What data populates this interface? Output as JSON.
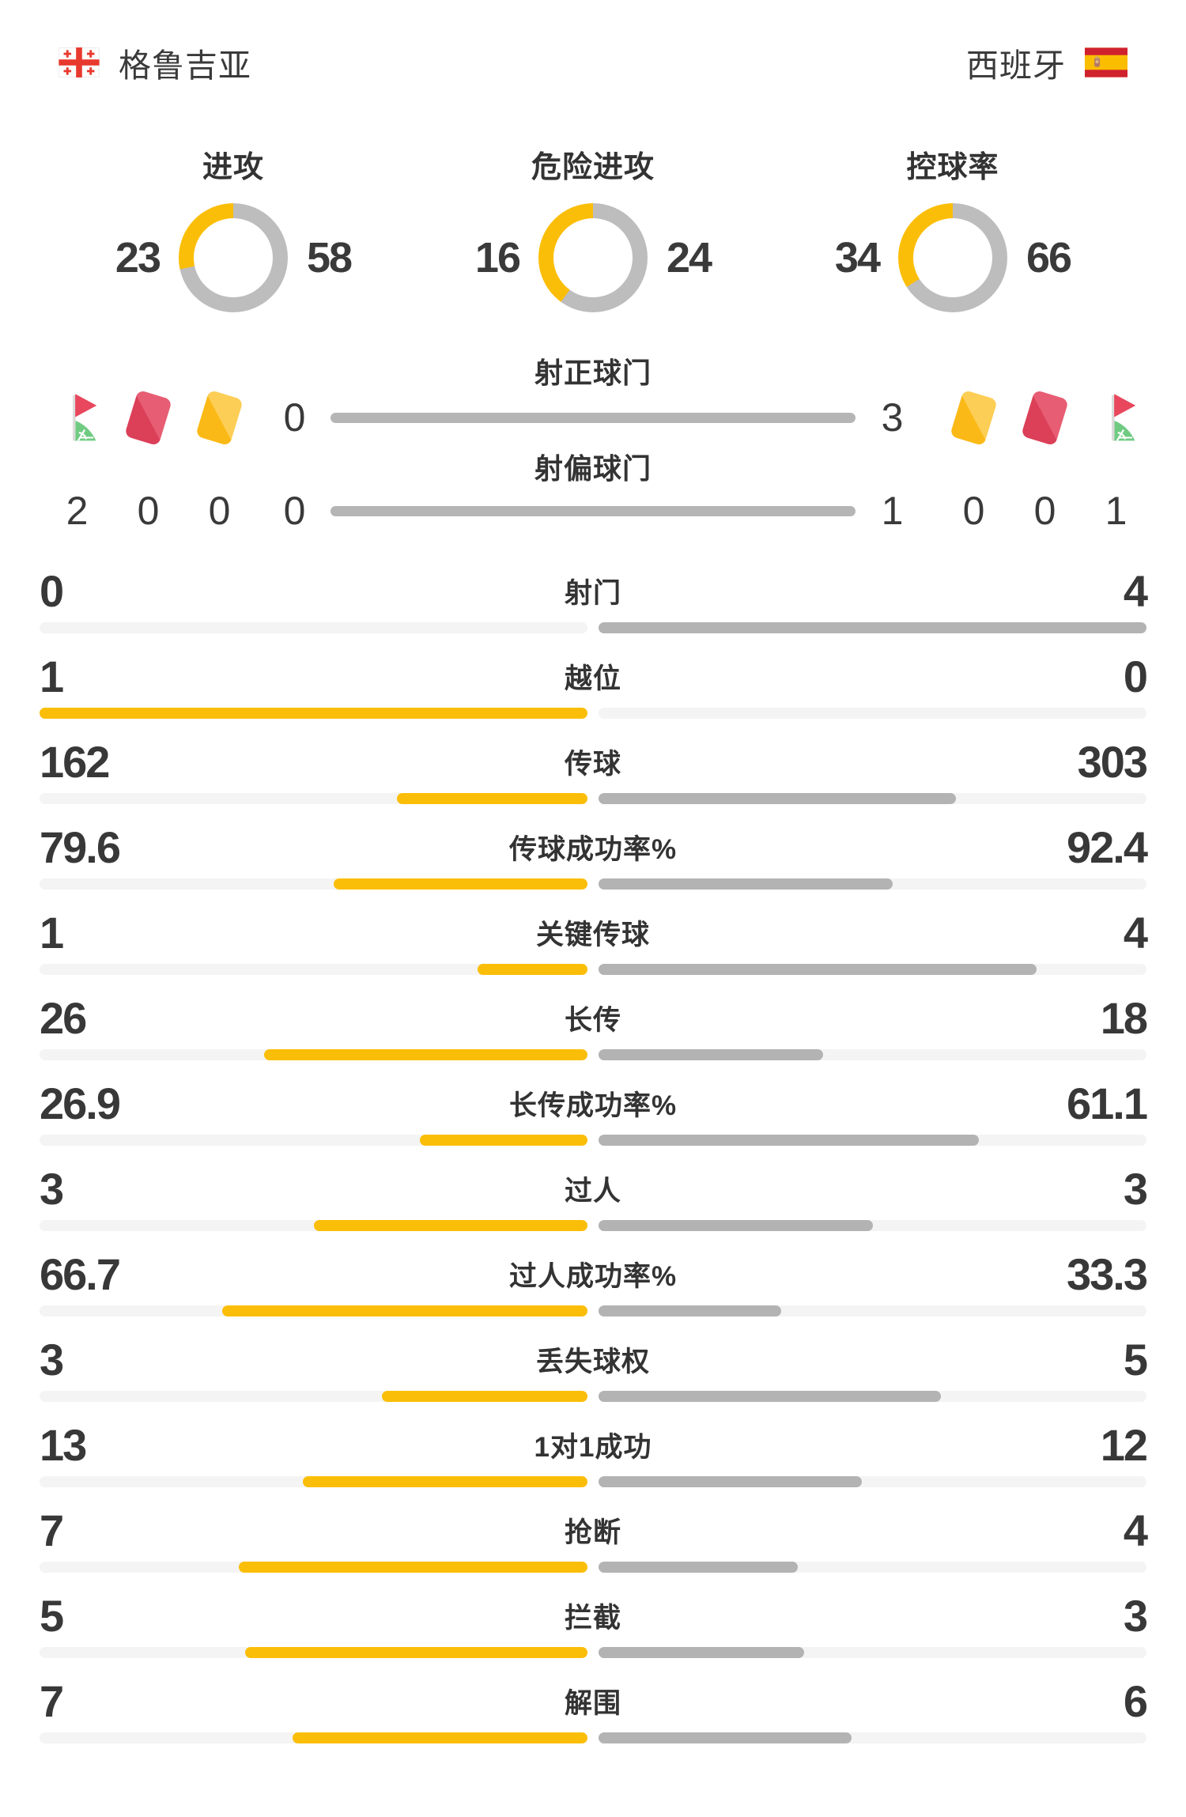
{
  "header": {
    "home": {
      "name": "格鲁吉亚",
      "flag": "georgia-flag"
    },
    "away": {
      "name": "西班牙",
      "flag": "spain-flag"
    }
  },
  "donuts": [
    {
      "title": "进攻",
      "home": 23,
      "away": 58
    },
    {
      "title": "危险进攻",
      "home": 16,
      "away": 24
    },
    {
      "title": "控球率",
      "home": 34,
      "away": 66
    }
  ],
  "shots": {
    "rows": [
      {
        "label": "射正球门",
        "home": "0",
        "away": "3"
      },
      {
        "label": "射偏球门",
        "home": "0",
        "away": "1"
      }
    ],
    "home_icons": [
      {
        "icon": "corner-flag-icon",
        "value": "2"
      },
      {
        "icon": "red-card-icon",
        "value": "0"
      },
      {
        "icon": "yellow-card-icon",
        "value": "0"
      }
    ],
    "away_icons": [
      {
        "icon": "yellow-card-icon",
        "value": "0"
      },
      {
        "icon": "red-card-icon",
        "value": "0"
      },
      {
        "icon": "corner-flag-icon",
        "value": "1"
      }
    ]
  },
  "stats": {
    "rows": [
      {
        "label": "射门",
        "home": "0",
        "away": "4"
      },
      {
        "label": "越位",
        "home": "1",
        "away": "0"
      },
      {
        "label": "传球",
        "home": "162",
        "away": "303"
      },
      {
        "label": "传球成功率%",
        "home": "79.6",
        "away": "92.4"
      },
      {
        "label": "关键传球",
        "home": "1",
        "away": "4"
      },
      {
        "label": "长传",
        "home": "26",
        "away": "18"
      },
      {
        "label": "长传成功率%",
        "home": "26.9",
        "away": "61.1"
      },
      {
        "label": "过人",
        "home": "3",
        "away": "3"
      },
      {
        "label": "过人成功率%",
        "home": "66.7",
        "away": "33.3"
      },
      {
        "label": "丢失球权",
        "home": "3",
        "away": "5"
      },
      {
        "label": "1对1成功",
        "home": "13",
        "away": "12"
      },
      {
        "label": "抢断",
        "home": "7",
        "away": "4"
      },
      {
        "label": "拦截",
        "home": "5",
        "away": "3"
      },
      {
        "label": "解围",
        "home": "7",
        "away": "6"
      }
    ]
  },
  "colors": {
    "amber": "#FBBE08",
    "gray_fill": "#B3B3B3",
    "track": "#F4F4F4",
    "donut_gray": "#BDBDBD",
    "yellow_card": "#FBBB20",
    "red_card": "#DD4260",
    "corner_green": "#70CB82",
    "corner_red": "#E8475E",
    "text": "#3A3A3A"
  },
  "chart_data": [
    {
      "type": "pie",
      "title": "进攻",
      "labels": [
        "格鲁吉亚",
        "西班牙"
      ],
      "values": [
        23,
        58
      ],
      "colors": [
        "#FBBE08",
        "#BDBDBD"
      ]
    },
    {
      "type": "pie",
      "title": "危险进攻",
      "labels": [
        "格鲁吉亚",
        "西班牙"
      ],
      "values": [
        16,
        24
      ],
      "colors": [
        "#FBBE08",
        "#BDBDBD"
      ]
    },
    {
      "type": "pie",
      "title": "控球率",
      "labels": [
        "格鲁吉亚",
        "西班牙"
      ],
      "values": [
        34,
        66
      ],
      "colors": [
        "#FBBE08",
        "#BDBDBD"
      ]
    },
    {
      "type": "bar",
      "title": "格鲁吉亚 vs 西班牙 比赛统计",
      "categories": [
        "角球",
        "红牌",
        "黄牌",
        "射正球门",
        "射偏球门",
        "射门",
        "越位",
        "传球",
        "传球成功率%",
        "关键传球",
        "长传",
        "长传成功率%",
        "过人",
        "过人成功率%",
        "丢失球权",
        "1对1成功",
        "抢断",
        "拦截",
        "解围"
      ],
      "series": [
        {
          "name": "格鲁吉亚",
          "values": [
            2,
            0,
            0,
            0,
            0,
            0,
            1,
            162,
            79.6,
            1,
            26,
            26.9,
            3,
            66.7,
            3,
            13,
            7,
            5,
            7
          ]
        },
        {
          "name": "西班牙",
          "values": [
            1,
            0,
            0,
            3,
            1,
            4,
            0,
            303,
            92.4,
            4,
            18,
            61.1,
            3,
            33.3,
            5,
            12,
            4,
            3,
            6
          ]
        }
      ],
      "legend_position": "none",
      "grid": false
    }
  ]
}
